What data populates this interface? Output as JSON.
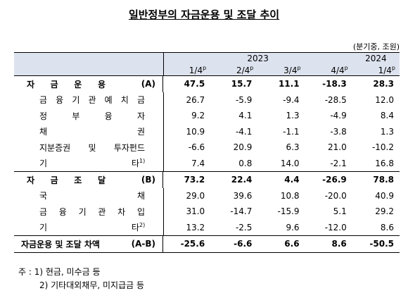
{
  "title": "일반정부의 자금운용 및 조달 추이",
  "unit": "(분기중, 조원)",
  "header": {
    "years": [
      {
        "label": "2023",
        "span": 4
      },
      {
        "label": "2024",
        "span": 1
      }
    ],
    "quarters": [
      {
        "label": "1/4",
        "sup": "p"
      },
      {
        "label": "2/4",
        "sup": "p"
      },
      {
        "label": "3/4",
        "sup": "p"
      },
      {
        "label": "4/4",
        "sup": "p"
      },
      {
        "label": "1/4",
        "sup": "p"
      }
    ]
  },
  "rows": [
    {
      "label": "자 금 운 용",
      "suffix": "(A)",
      "level": "main",
      "values": [
        "47.5",
        "15.7",
        "11.1",
        "-18.3",
        "28.3"
      ]
    },
    {
      "label": "금 융 기 관 예 치 금",
      "level": "sub",
      "values": [
        "26.7",
        "-5.9",
        "-9.4",
        "-28.5",
        "12.0"
      ]
    },
    {
      "label": "정 부 융 자",
      "level": "sub",
      "values": [
        "9.2",
        "4.1",
        "1.3",
        "-4.9",
        "8.4"
      ]
    },
    {
      "label": "채 권",
      "level": "sub",
      "values": [
        "10.9",
        "-4.1",
        "-1.1",
        "-3.8",
        "1.3"
      ]
    },
    {
      "label": "지분증권 및 투자펀드",
      "level": "sub",
      "values": [
        "-6.6",
        "20.9",
        "6.3",
        "21.0",
        "-10.2"
      ]
    },
    {
      "label": "기 타",
      "note": "1)",
      "level": "sub",
      "values": [
        "7.4",
        "0.8",
        "14.0",
        "-2.1",
        "16.8"
      ]
    },
    {
      "label": "자 금 조 달",
      "suffix": "(B)",
      "level": "main",
      "values": [
        "73.2",
        "22.4",
        "4.4",
        "-26.9",
        "78.8"
      ]
    },
    {
      "label": "국 채",
      "level": "sub",
      "values": [
        "29.0",
        "39.6",
        "10.8",
        "-20.0",
        "40.9"
      ]
    },
    {
      "label": "금 융 기 관 차 입",
      "level": "sub",
      "values": [
        "31.0",
        "-14.7",
        "-15.9",
        "5.1",
        "29.2"
      ]
    },
    {
      "label": "기 타",
      "note": "2)",
      "level": "sub",
      "values": [
        "13.2",
        "-2.5",
        "9.6",
        "-12.0",
        "8.6"
      ]
    },
    {
      "label": "자금운용 및 조달 차액",
      "suffix": "(A-B)",
      "level": "total",
      "values": [
        "-25.6",
        "-6.6",
        "6.6",
        "8.6",
        "-50.5"
      ]
    }
  ],
  "notes": [
    "주 : 1) 현금, 미수금 등",
    "2) 기타대외채무, 미지급금 등"
  ]
}
